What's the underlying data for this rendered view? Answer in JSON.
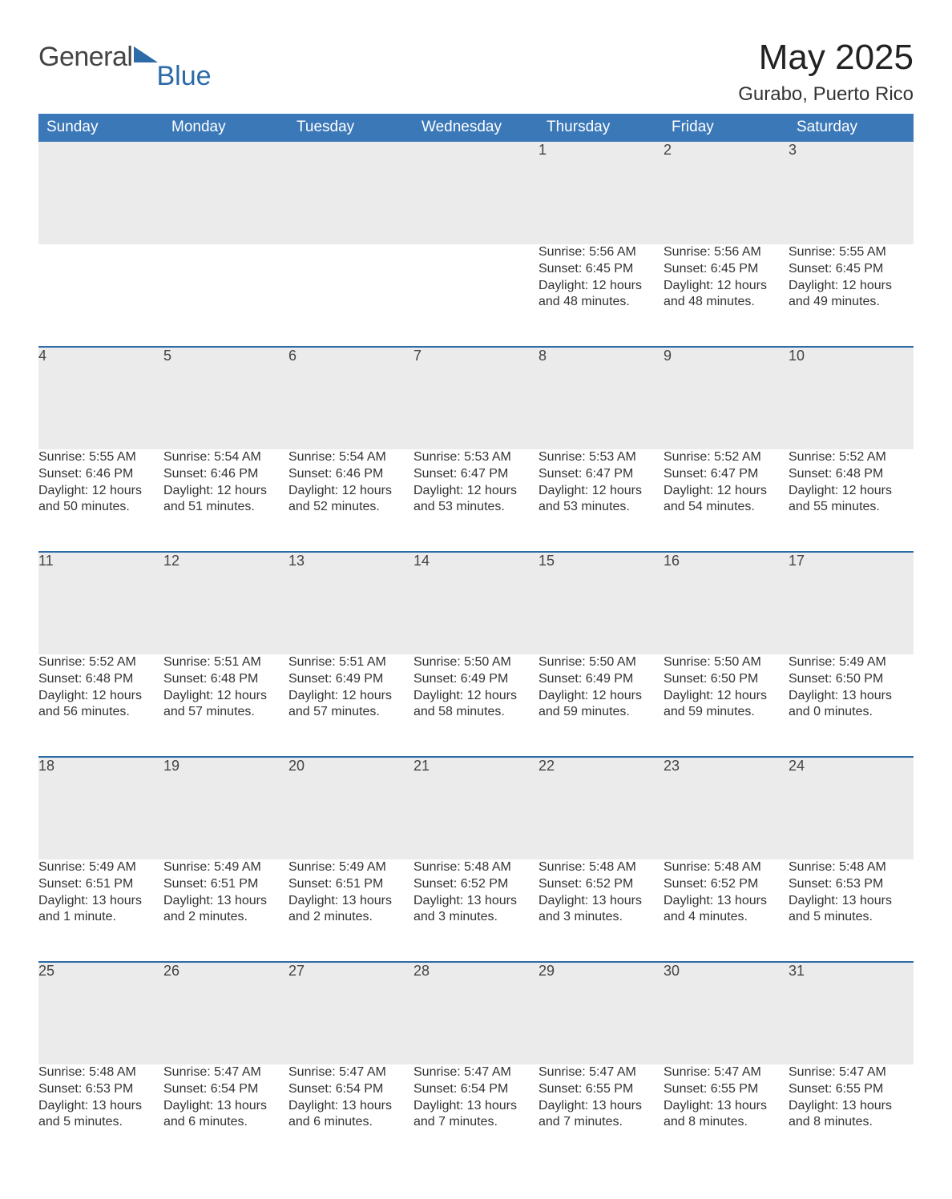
{
  "logo": {
    "word1": "General",
    "word2": "Blue"
  },
  "title": "May 2025",
  "location": "Gurabo, Puerto Rico",
  "colors": {
    "header_bg": "#3b78b8",
    "header_text": "#ffffff",
    "daynum_bg": "#ebebeb",
    "row_border": "#2d6aa8",
    "page_bg": "#ffffff",
    "logo_blue": "#2d6aa8",
    "text": "#333333"
  },
  "typography": {
    "title_fontsize": 44,
    "location_fontsize": 24,
    "weekday_fontsize": 19,
    "daynum_fontsize": 18,
    "detail_fontsize": 16,
    "logo_fontsize": 34,
    "font_family": "Segoe UI"
  },
  "weekdays": [
    "Sunday",
    "Monday",
    "Tuesday",
    "Wednesday",
    "Thursday",
    "Friday",
    "Saturday"
  ],
  "labels": {
    "sunrise": "Sunrise: ",
    "sunset": "Sunset: ",
    "daylight": "Daylight: "
  },
  "weeks": [
    [
      null,
      null,
      null,
      null,
      {
        "n": "1",
        "sunrise": "5:56 AM",
        "sunset": "6:45 PM",
        "daylight": "12 hours and 48 minutes."
      },
      {
        "n": "2",
        "sunrise": "5:56 AM",
        "sunset": "6:45 PM",
        "daylight": "12 hours and 48 minutes."
      },
      {
        "n": "3",
        "sunrise": "5:55 AM",
        "sunset": "6:45 PM",
        "daylight": "12 hours and 49 minutes."
      }
    ],
    [
      {
        "n": "4",
        "sunrise": "5:55 AM",
        "sunset": "6:46 PM",
        "daylight": "12 hours and 50 minutes."
      },
      {
        "n": "5",
        "sunrise": "5:54 AM",
        "sunset": "6:46 PM",
        "daylight": "12 hours and 51 minutes."
      },
      {
        "n": "6",
        "sunrise": "5:54 AM",
        "sunset": "6:46 PM",
        "daylight": "12 hours and 52 minutes."
      },
      {
        "n": "7",
        "sunrise": "5:53 AM",
        "sunset": "6:47 PM",
        "daylight": "12 hours and 53 minutes."
      },
      {
        "n": "8",
        "sunrise": "5:53 AM",
        "sunset": "6:47 PM",
        "daylight": "12 hours and 53 minutes."
      },
      {
        "n": "9",
        "sunrise": "5:52 AM",
        "sunset": "6:47 PM",
        "daylight": "12 hours and 54 minutes."
      },
      {
        "n": "10",
        "sunrise": "5:52 AM",
        "sunset": "6:48 PM",
        "daylight": "12 hours and 55 minutes."
      }
    ],
    [
      {
        "n": "11",
        "sunrise": "5:52 AM",
        "sunset": "6:48 PM",
        "daylight": "12 hours and 56 minutes."
      },
      {
        "n": "12",
        "sunrise": "5:51 AM",
        "sunset": "6:48 PM",
        "daylight": "12 hours and 57 minutes."
      },
      {
        "n": "13",
        "sunrise": "5:51 AM",
        "sunset": "6:49 PM",
        "daylight": "12 hours and 57 minutes."
      },
      {
        "n": "14",
        "sunrise": "5:50 AM",
        "sunset": "6:49 PM",
        "daylight": "12 hours and 58 minutes."
      },
      {
        "n": "15",
        "sunrise": "5:50 AM",
        "sunset": "6:49 PM",
        "daylight": "12 hours and 59 minutes."
      },
      {
        "n": "16",
        "sunrise": "5:50 AM",
        "sunset": "6:50 PM",
        "daylight": "12 hours and 59 minutes."
      },
      {
        "n": "17",
        "sunrise": "5:49 AM",
        "sunset": "6:50 PM",
        "daylight": "13 hours and 0 minutes."
      }
    ],
    [
      {
        "n": "18",
        "sunrise": "5:49 AM",
        "sunset": "6:51 PM",
        "daylight": "13 hours and 1 minute."
      },
      {
        "n": "19",
        "sunrise": "5:49 AM",
        "sunset": "6:51 PM",
        "daylight": "13 hours and 2 minutes."
      },
      {
        "n": "20",
        "sunrise": "5:49 AM",
        "sunset": "6:51 PM",
        "daylight": "13 hours and 2 minutes."
      },
      {
        "n": "21",
        "sunrise": "5:48 AM",
        "sunset": "6:52 PM",
        "daylight": "13 hours and 3 minutes."
      },
      {
        "n": "22",
        "sunrise": "5:48 AM",
        "sunset": "6:52 PM",
        "daylight": "13 hours and 3 minutes."
      },
      {
        "n": "23",
        "sunrise": "5:48 AM",
        "sunset": "6:52 PM",
        "daylight": "13 hours and 4 minutes."
      },
      {
        "n": "24",
        "sunrise": "5:48 AM",
        "sunset": "6:53 PM",
        "daylight": "13 hours and 5 minutes."
      }
    ],
    [
      {
        "n": "25",
        "sunrise": "5:48 AM",
        "sunset": "6:53 PM",
        "daylight": "13 hours and 5 minutes."
      },
      {
        "n": "26",
        "sunrise": "5:47 AM",
        "sunset": "6:54 PM",
        "daylight": "13 hours and 6 minutes."
      },
      {
        "n": "27",
        "sunrise": "5:47 AM",
        "sunset": "6:54 PM",
        "daylight": "13 hours and 6 minutes."
      },
      {
        "n": "28",
        "sunrise": "5:47 AM",
        "sunset": "6:54 PM",
        "daylight": "13 hours and 7 minutes."
      },
      {
        "n": "29",
        "sunrise": "5:47 AM",
        "sunset": "6:55 PM",
        "daylight": "13 hours and 7 minutes."
      },
      {
        "n": "30",
        "sunrise": "5:47 AM",
        "sunset": "6:55 PM",
        "daylight": "13 hours and 8 minutes."
      },
      {
        "n": "31",
        "sunrise": "5:47 AM",
        "sunset": "6:55 PM",
        "daylight": "13 hours and 8 minutes."
      }
    ]
  ]
}
